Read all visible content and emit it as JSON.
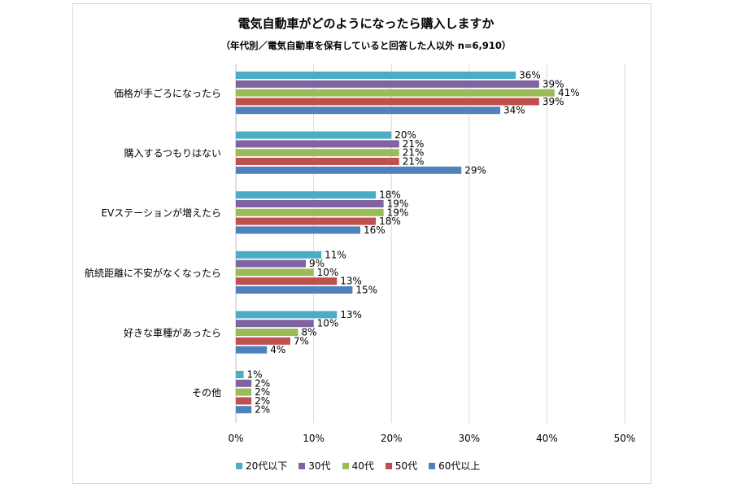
{
  "chart_data": {
    "type": "bar",
    "orientation": "horizontal",
    "title": "電気自動車がどのようになったら購入しますか",
    "subtitle": "（年代別／電気自動車を保有していると回答した人以外 n=6,910）",
    "categories": [
      "価格が手ごろになったら",
      "購入するつもりはない",
      "EVステーションが増えたら",
      "航続距離に不安がなくなったら",
      "好きな車種があったら",
      "その他"
    ],
    "series": [
      {
        "name": "20代以下",
        "color": "#4bacc6",
        "values": [
          36,
          20,
          18,
          11,
          13,
          1
        ]
      },
      {
        "name": "30代",
        "color": "#8064a2",
        "values": [
          39,
          21,
          19,
          9,
          10,
          2
        ]
      },
      {
        "name": "40代",
        "color": "#9bbb59",
        "values": [
          41,
          21,
          19,
          10,
          8,
          2
        ]
      },
      {
        "name": "50代",
        "color": "#c0504d",
        "values": [
          39,
          21,
          18,
          13,
          7,
          2
        ]
      },
      {
        "name": "60代以上",
        "color": "#4f81bd",
        "values": [
          34,
          29,
          16,
          15,
          4,
          2
        ]
      }
    ],
    "xlim": [
      0,
      50
    ],
    "xticks": [
      "0%",
      "10%",
      "20%",
      "30%",
      "40%",
      "50%"
    ],
    "value_suffix": "%",
    "legend_position": "bottom",
    "grid": "vertical"
  }
}
